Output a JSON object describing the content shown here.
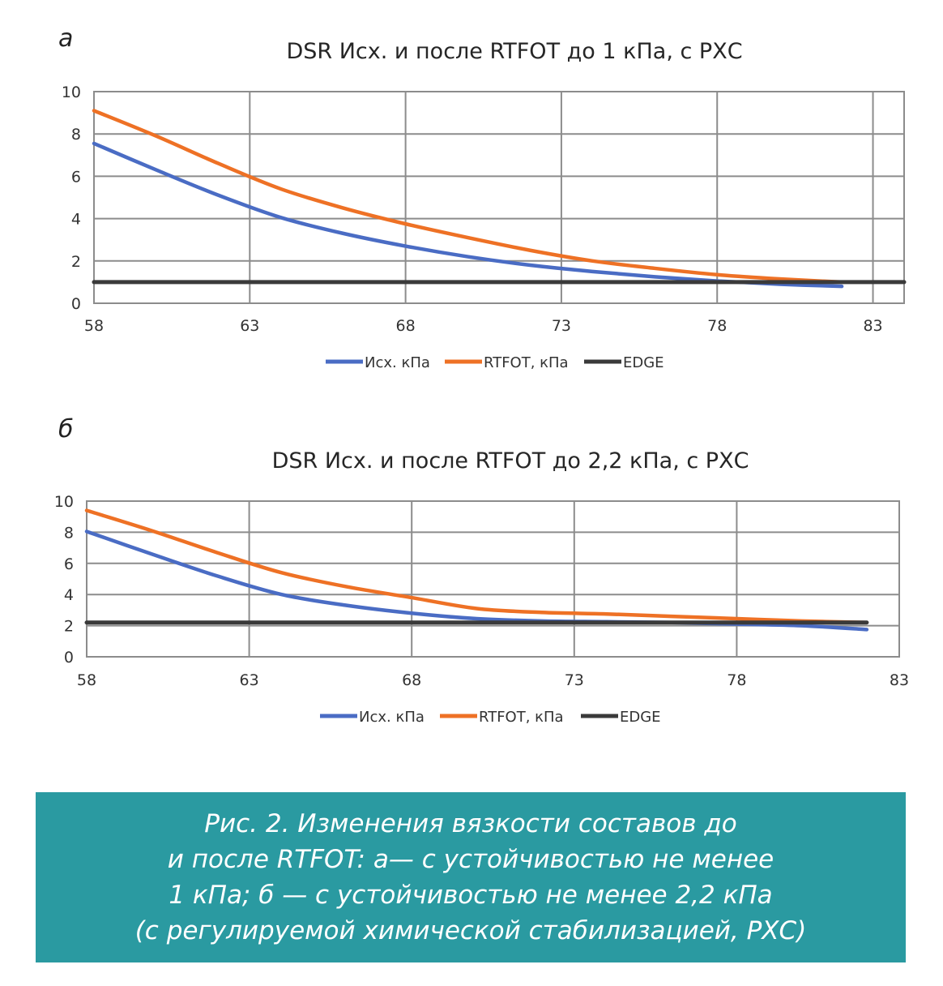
{
  "colors": {
    "series_orig": "#4a6cc4",
    "series_rtfot": "#ee7125",
    "series_edge": "#3a3a3a",
    "grid": "#8c8c8c",
    "caption_bg": "#2a9aa1"
  },
  "chart_data": [
    {
      "panel": "а",
      "type": "line",
      "title": "DSR Исх. и после RTFOT до 1 кПа, с РХС",
      "xlim": [
        58,
        84
      ],
      "ylim": [
        0,
        10
      ],
      "x_ticks": [
        "58",
        "63",
        "68",
        "73",
        "78",
        "83"
      ],
      "y_ticks": [
        "0",
        "2",
        "4",
        "6",
        "8",
        "10"
      ],
      "grid": true,
      "legend": "bottom",
      "series": [
        {
          "name": "Исх. кПа",
          "x": [
            58,
            60,
            62,
            64,
            66,
            68,
            70,
            72,
            74,
            76,
            78,
            80,
            82
          ],
          "y": [
            7.55,
            6.3,
            5.1,
            4.05,
            3.3,
            2.7,
            2.2,
            1.8,
            1.5,
            1.25,
            1.05,
            0.9,
            0.8
          ]
        },
        {
          "name": "RTFOT, кПа",
          "x": [
            58,
            60,
            62,
            64,
            66,
            68,
            70,
            72,
            74,
            76,
            78,
            80,
            82
          ],
          "y": [
            9.1,
            7.9,
            6.6,
            5.4,
            4.5,
            3.75,
            3.1,
            2.5,
            2.0,
            1.65,
            1.35,
            1.15,
            1.0
          ]
        },
        {
          "name": "EDGE",
          "x": [
            58,
            84
          ],
          "y": [
            1.0,
            1.0
          ]
        }
      ]
    },
    {
      "panel": "б",
      "type": "line",
      "title": "DSR Исх. и после RTFOT до 2,2 кПа, с РХС",
      "xlim": [
        58,
        83
      ],
      "ylim": [
        0,
        10
      ],
      "x_ticks": [
        "58",
        "63",
        "68",
        "73",
        "78",
        "83"
      ],
      "y_ticks": [
        "0",
        "2",
        "4",
        "6",
        "8",
        "10"
      ],
      "grid": true,
      "legend": "bottom",
      "series": [
        {
          "name": "Исх. кПа",
          "x": [
            58,
            60,
            62,
            64,
            66,
            68,
            70,
            72,
            74,
            76,
            78,
            80,
            82
          ],
          "y": [
            8.05,
            6.6,
            5.2,
            4.0,
            3.3,
            2.8,
            2.45,
            2.3,
            2.25,
            2.2,
            2.1,
            2.0,
            1.75
          ]
        },
        {
          "name": "RTFOT, кПа",
          "x": [
            58,
            60,
            62,
            64,
            66,
            68,
            70,
            72,
            74,
            76,
            78,
            80,
            82
          ],
          "y": [
            9.4,
            8.1,
            6.7,
            5.4,
            4.5,
            3.8,
            3.1,
            2.85,
            2.75,
            2.6,
            2.45,
            2.3,
            2.2
          ]
        },
        {
          "name": "EDGE",
          "x": [
            58,
            82
          ],
          "y": [
            2.2,
            2.2
          ]
        }
      ]
    }
  ],
  "caption": {
    "lines": [
      "Рис. 2. Изменения вязкости составов до",
      "и после RTFOT: а— с устойчивостью не менее",
      "1 кПа; б — с устойчивостью не менее 2,2 кПа",
      "(с регулируемой химической стабилизацией, РХС)"
    ]
  }
}
